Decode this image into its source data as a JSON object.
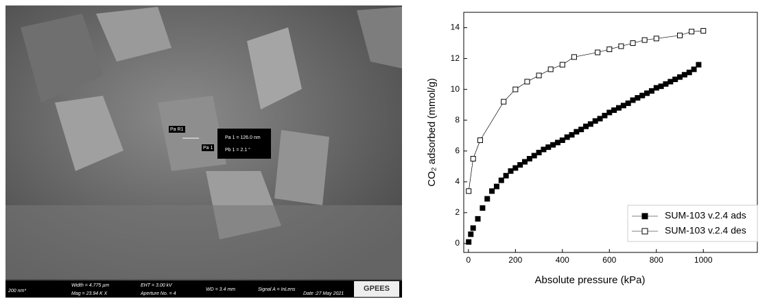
{
  "image": {
    "labels": [
      "Pa R1",
      "Pa 1"
    ],
    "measurement": [
      "Pa 1 = 126.0 nm",
      "Pb 1 = 2.1 °"
    ],
    "info_bar": [
      "200 nm*",
      "Width = 4.775 µm",
      "Mag = 23.94 K X",
      "EHT = 3.00 kV",
      "Aperture No. = 4",
      "WD = 3.4 mm",
      "Signal A = InLens",
      "Date :27 May 2021"
    ],
    "logo": "GPEES"
  },
  "chart_data": {
    "type": "line",
    "x_label": "Absolute pressure (kPa)",
    "y_label": "CO₂ adsorbed (mmol/g)",
    "xlim": [
      -20,
      1230
    ],
    "xticks": [
      0,
      200,
      400,
      600,
      800,
      1000
    ],
    "ylim": [
      -0.58,
      15
    ],
    "yticks": [
      0,
      2,
      4,
      6,
      8,
      10,
      12,
      14
    ],
    "legend": "lower right",
    "series": [
      {
        "name": "SUM-103 v.2.4 ads",
        "color": "#000000",
        "fill": "#000000",
        "connect": false,
        "x": [
          1,
          10,
          20,
          40,
          60,
          80,
          100,
          120,
          140,
          160,
          180,
          200,
          220,
          240,
          260,
          280,
          300,
          320,
          340,
          360,
          380,
          400,
          420,
          440,
          460,
          480,
          500,
          520,
          540,
          560,
          580,
          600,
          620,
          640,
          660,
          680,
          700,
          720,
          740,
          760,
          780,
          800,
          820,
          840,
          860,
          880,
          900,
          920,
          940,
          960,
          980
        ],
        "values": [
          0.1,
          0.6,
          1.0,
          1.6,
          2.3,
          2.9,
          3.4,
          3.7,
          4.1,
          4.4,
          4.7,
          4.9,
          5.1,
          5.3,
          5.5,
          5.7,
          5.9,
          6.1,
          6.25,
          6.4,
          6.55,
          6.7,
          6.9,
          7.05,
          7.25,
          7.4,
          7.6,
          7.75,
          7.95,
          8.1,
          8.3,
          8.5,
          8.65,
          8.8,
          8.95,
          9.1,
          9.3,
          9.45,
          9.6,
          9.75,
          9.9,
          10.1,
          10.2,
          10.35,
          10.5,
          10.65,
          10.8,
          10.95,
          11.1,
          11.3,
          11.6
        ]
      },
      {
        "name": "SUM-103 v.2.4 des",
        "color": "#000000",
        "fill": "#ffffff",
        "connect": true,
        "x": [
          1000,
          950,
          900,
          800,
          750,
          700,
          650,
          600,
          550,
          450,
          400,
          350,
          300,
          250,
          200,
          150,
          50,
          20,
          1
        ],
        "values": [
          13.8,
          13.75,
          13.5,
          13.3,
          13.2,
          13.0,
          12.8,
          12.6,
          12.4,
          12.1,
          11.6,
          11.3,
          10.9,
          10.5,
          10.0,
          9.2,
          6.7,
          5.5,
          3.4
        ]
      }
    ]
  }
}
